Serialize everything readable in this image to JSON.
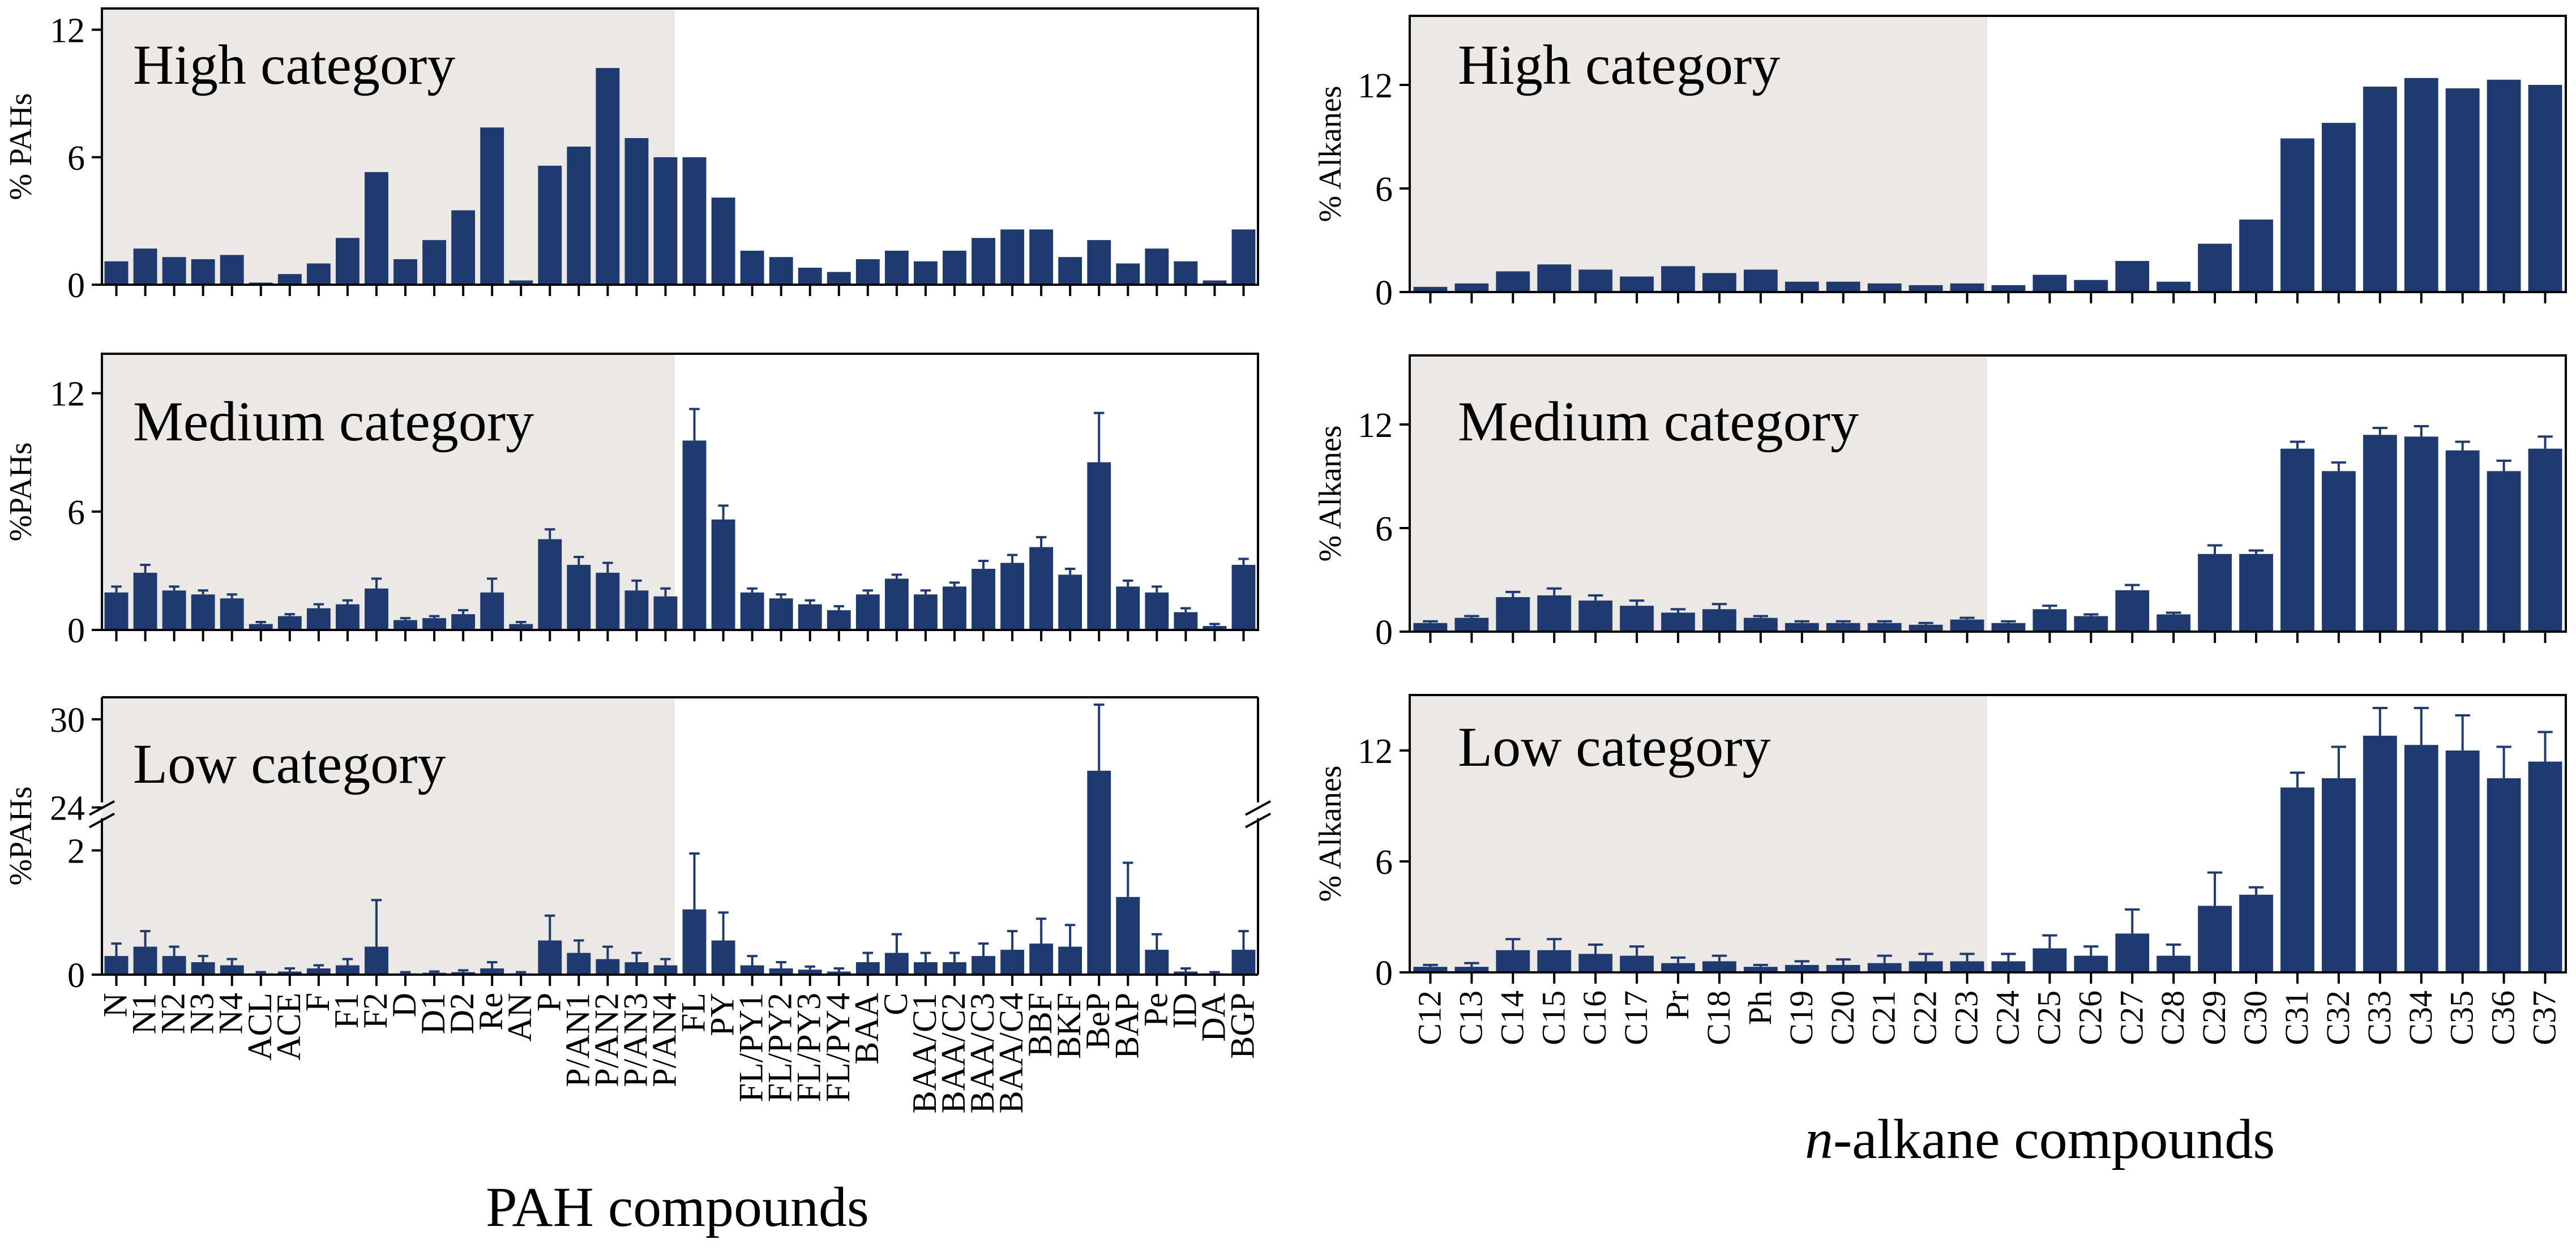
{
  "colors": {
    "bar": "#1f3a6e",
    "panel_band": "#ebe8e5",
    "axis": "#000000",
    "background": "#ffffff"
  },
  "pah_caption": "PAH compounds",
  "alk_caption": {
    "prefix": "n",
    "rest": "-alkane compounds"
  },
  "chart_data": [
    {
      "id": "pah-high",
      "type": "bar",
      "title": "High category",
      "ylabel": "% PAHs",
      "xlabel": "PAH compounds",
      "ylim": [
        0,
        13
      ],
      "yticks": [
        0,
        6,
        12
      ],
      "categories": [
        "N",
        "N1",
        "N2",
        "N3",
        "N4",
        "ACL",
        "ACE",
        "F",
        "F1",
        "F2",
        "D",
        "D1",
        "D2",
        "Re",
        "AN",
        "P",
        "P/AN1",
        "P/AN2",
        "P/AN3",
        "P/AN4",
        "FL",
        "PY",
        "FL/PY1",
        "FL/PY2",
        "FL/PY3",
        "FL/PY4",
        "BAA",
        "C",
        "BAA/C1",
        "BAA/C2",
        "BAA/C3",
        "BAA/C4",
        "BBF",
        "BKF",
        "BeP",
        "BAP",
        "Pe",
        "ID",
        "DA",
        "BGP"
      ],
      "values": [
        1.1,
        1.7,
        1.3,
        1.2,
        1.4,
        0.1,
        0.5,
        1.0,
        2.2,
        5.3,
        1.2,
        2.1,
        3.5,
        7.4,
        0.2,
        5.6,
        6.5,
        10.2,
        6.9,
        6.0,
        6.0,
        4.1,
        1.6,
        1.3,
        0.8,
        0.6,
        1.2,
        1.6,
        1.1,
        1.6,
        2.2,
        2.6,
        2.6,
        1.3,
        2.1,
        1.0,
        1.7,
        1.1,
        0.2,
        2.6
      ]
    },
    {
      "id": "pah-medium",
      "type": "bar",
      "title": "Medium category",
      "ylabel": "%PAHs",
      "xlabel": "PAH compounds",
      "ylim": [
        0,
        14
      ],
      "yticks": [
        0,
        6,
        12
      ],
      "categories": [
        "N",
        "N1",
        "N2",
        "N3",
        "N4",
        "ACL",
        "ACE",
        "F",
        "F1",
        "F2",
        "D",
        "D1",
        "D2",
        "Re",
        "AN",
        "P",
        "P/AN1",
        "P/AN2",
        "P/AN3",
        "P/AN4",
        "FL",
        "PY",
        "FL/PY1",
        "FL/PY2",
        "FL/PY3",
        "FL/PY4",
        "BAA",
        "C",
        "BAA/C1",
        "BAA/C2",
        "BAA/C3",
        "BAA/C4",
        "BBF",
        "BKF",
        "BeP",
        "BAP",
        "Pe",
        "ID",
        "DA",
        "BGP"
      ],
      "values": [
        1.9,
        2.9,
        2.0,
        1.8,
        1.6,
        0.3,
        0.7,
        1.1,
        1.3,
        2.1,
        0.5,
        0.6,
        0.8,
        1.9,
        0.3,
        4.6,
        3.3,
        2.9,
        2.0,
        1.7,
        9.6,
        5.6,
        1.9,
        1.6,
        1.3,
        1.0,
        1.8,
        2.6,
        1.8,
        2.2,
        3.1,
        3.4,
        4.2,
        2.8,
        8.5,
        2.2,
        1.9,
        0.9,
        0.2,
        3.3
      ],
      "errors": [
        0.3,
        0.4,
        0.2,
        0.2,
        0.2,
        0.1,
        0.1,
        0.2,
        0.2,
        0.5,
        0.1,
        0.1,
        0.2,
        0.7,
        0.1,
        0.5,
        0.4,
        0.5,
        0.5,
        0.4,
        1.6,
        0.7,
        0.2,
        0.2,
        0.2,
        0.2,
        0.2,
        0.2,
        0.2,
        0.2,
        0.4,
        0.4,
        0.5,
        0.3,
        2.5,
        0.3,
        0.3,
        0.2,
        0.1,
        0.3
      ]
    },
    {
      "id": "pah-low",
      "type": "bar",
      "title": "Low category",
      "ylabel": "%PAHs",
      "xlabel": "PAH compounds",
      "axis_break": {
        "lower_ylim": [
          0,
          2.5
        ],
        "upper_ylim": [
          23.5,
          31.5
        ],
        "lower_ticks": [
          0,
          2
        ],
        "upper_ticks": [
          24,
          30
        ]
      },
      "categories": [
        "N",
        "N1",
        "N2",
        "N3",
        "N4",
        "ACL",
        "ACE",
        "F",
        "F1",
        "F2",
        "D",
        "D1",
        "D2",
        "Re",
        "AN",
        "P",
        "P/AN1",
        "P/AN2",
        "P/AN3",
        "P/AN4",
        "FL",
        "PY",
        "FL/PY1",
        "FL/PY2",
        "FL/PY3",
        "FL/PY4",
        "BAA",
        "C",
        "BAA/C1",
        "BAA/C2",
        "BAA/C3",
        "BAA/C4",
        "BBF",
        "BKF",
        "BeP",
        "BAP",
        "Pe",
        "ID",
        "DA",
        "BGP"
      ],
      "values": [
        0.3,
        0.45,
        0.3,
        0.2,
        0.15,
        0.02,
        0.05,
        0.1,
        0.15,
        0.45,
        0.02,
        0.03,
        0.04,
        0.1,
        0.02,
        0.55,
        0.35,
        0.25,
        0.2,
        0.15,
        1.05,
        0.55,
        0.15,
        0.1,
        0.08,
        0.05,
        0.2,
        0.35,
        0.2,
        0.2,
        0.3,
        0.4,
        0.5,
        0.45,
        26.5,
        1.25,
        0.4,
        0.05,
        0.02,
        0.4
      ],
      "errors": [
        0.2,
        0.25,
        0.15,
        0.1,
        0.1,
        0.02,
        0.05,
        0.05,
        0.1,
        0.75,
        0.02,
        0.02,
        0.03,
        0.1,
        0.02,
        0.4,
        0.2,
        0.2,
        0.15,
        0.1,
        0.9,
        0.45,
        0.15,
        0.1,
        0.05,
        0.05,
        0.15,
        0.3,
        0.15,
        0.15,
        0.2,
        0.3,
        0.4,
        0.35,
        4.5,
        0.55,
        0.25,
        0.05,
        0.02,
        0.3
      ]
    },
    {
      "id": "alk-high",
      "type": "bar",
      "title": "High category",
      "ylabel": "% Alkanes",
      "xlabel": "n-alkane compounds",
      "ylim": [
        0,
        16
      ],
      "yticks": [
        0,
        6,
        12
      ],
      "categories": [
        "C12",
        "C13",
        "C14",
        "C15",
        "C16",
        "C17",
        "Pr",
        "C18",
        "Ph",
        "C19",
        "C20",
        "C21",
        "C22",
        "C23",
        "C24",
        "C25",
        "C26",
        "C27",
        "C28",
        "C29",
        "C30",
        "C31",
        "C32",
        "C33",
        "C34",
        "C35",
        "C36",
        "C37"
      ],
      "values": [
        0.3,
        0.5,
        1.2,
        1.6,
        1.3,
        0.9,
        1.5,
        1.1,
        1.3,
        0.6,
        0.6,
        0.5,
        0.4,
        0.5,
        0.4,
        1.0,
        0.7,
        1.8,
        0.6,
        2.8,
        4.2,
        8.9,
        9.8,
        11.9,
        12.4,
        11.8,
        12.3,
        12.0
      ]
    },
    {
      "id": "alk-medium",
      "type": "bar",
      "title": "Medium category",
      "ylabel": "% Alkanes",
      "xlabel": "n-alkane compounds",
      "ylim": [
        0,
        16
      ],
      "yticks": [
        0,
        6,
        12
      ],
      "categories": [
        "C12",
        "C13",
        "C14",
        "C15",
        "C16",
        "C17",
        "Pr",
        "C18",
        "Ph",
        "C19",
        "C20",
        "C21",
        "C22",
        "C23",
        "C24",
        "C25",
        "C26",
        "C27",
        "C28",
        "C29",
        "C30",
        "C31",
        "C32",
        "C33",
        "C34",
        "C35",
        "C36",
        "C37"
      ],
      "values": [
        0.5,
        0.8,
        2.0,
        2.1,
        1.8,
        1.5,
        1.1,
        1.3,
        0.8,
        0.5,
        0.5,
        0.5,
        0.4,
        0.7,
        0.5,
        1.3,
        0.9,
        2.4,
        1.0,
        4.5,
        4.5,
        10.6,
        9.3,
        11.4,
        11.3,
        10.5,
        9.3,
        10.6
      ],
      "errors": [
        0.1,
        0.1,
        0.3,
        0.4,
        0.3,
        0.3,
        0.2,
        0.3,
        0.1,
        0.1,
        0.1,
        0.1,
        0.1,
        0.1,
        0.1,
        0.2,
        0.1,
        0.3,
        0.1,
        0.5,
        0.2,
        0.4,
        0.5,
        0.4,
        0.6,
        0.5,
        0.6,
        0.7
      ]
    },
    {
      "id": "alk-low",
      "type": "bar",
      "title": "Low category",
      "ylabel": "% Alkanes",
      "xlabel": "n-alkane compounds",
      "ylim": [
        0,
        15
      ],
      "yticks": [
        0,
        6,
        12
      ],
      "categories": [
        "C12",
        "C13",
        "C14",
        "C15",
        "C16",
        "C17",
        "Pr",
        "C18",
        "Ph",
        "C19",
        "C20",
        "C21",
        "C22",
        "C23",
        "C24",
        "C25",
        "C26",
        "C27",
        "C28",
        "C29",
        "C30",
        "C31",
        "C32",
        "C33",
        "C34",
        "C35",
        "C36",
        "C37"
      ],
      "values": [
        0.3,
        0.3,
        1.2,
        1.2,
        1.0,
        0.9,
        0.5,
        0.6,
        0.3,
        0.4,
        0.4,
        0.5,
        0.6,
        0.6,
        0.6,
        1.3,
        0.9,
        2.1,
        0.9,
        3.6,
        4.2,
        10.0,
        10.5,
        12.8,
        12.3,
        12.0,
        10.5,
        11.4
      ],
      "errors": [
        0.1,
        0.2,
        0.6,
        0.6,
        0.5,
        0.5,
        0.3,
        0.3,
        0.1,
        0.2,
        0.3,
        0.4,
        0.4,
        0.4,
        0.4,
        0.7,
        0.5,
        1.3,
        0.6,
        1.8,
        0.4,
        0.8,
        1.7,
        1.5,
        2.0,
        1.9,
        1.7,
        1.6
      ]
    }
  ]
}
